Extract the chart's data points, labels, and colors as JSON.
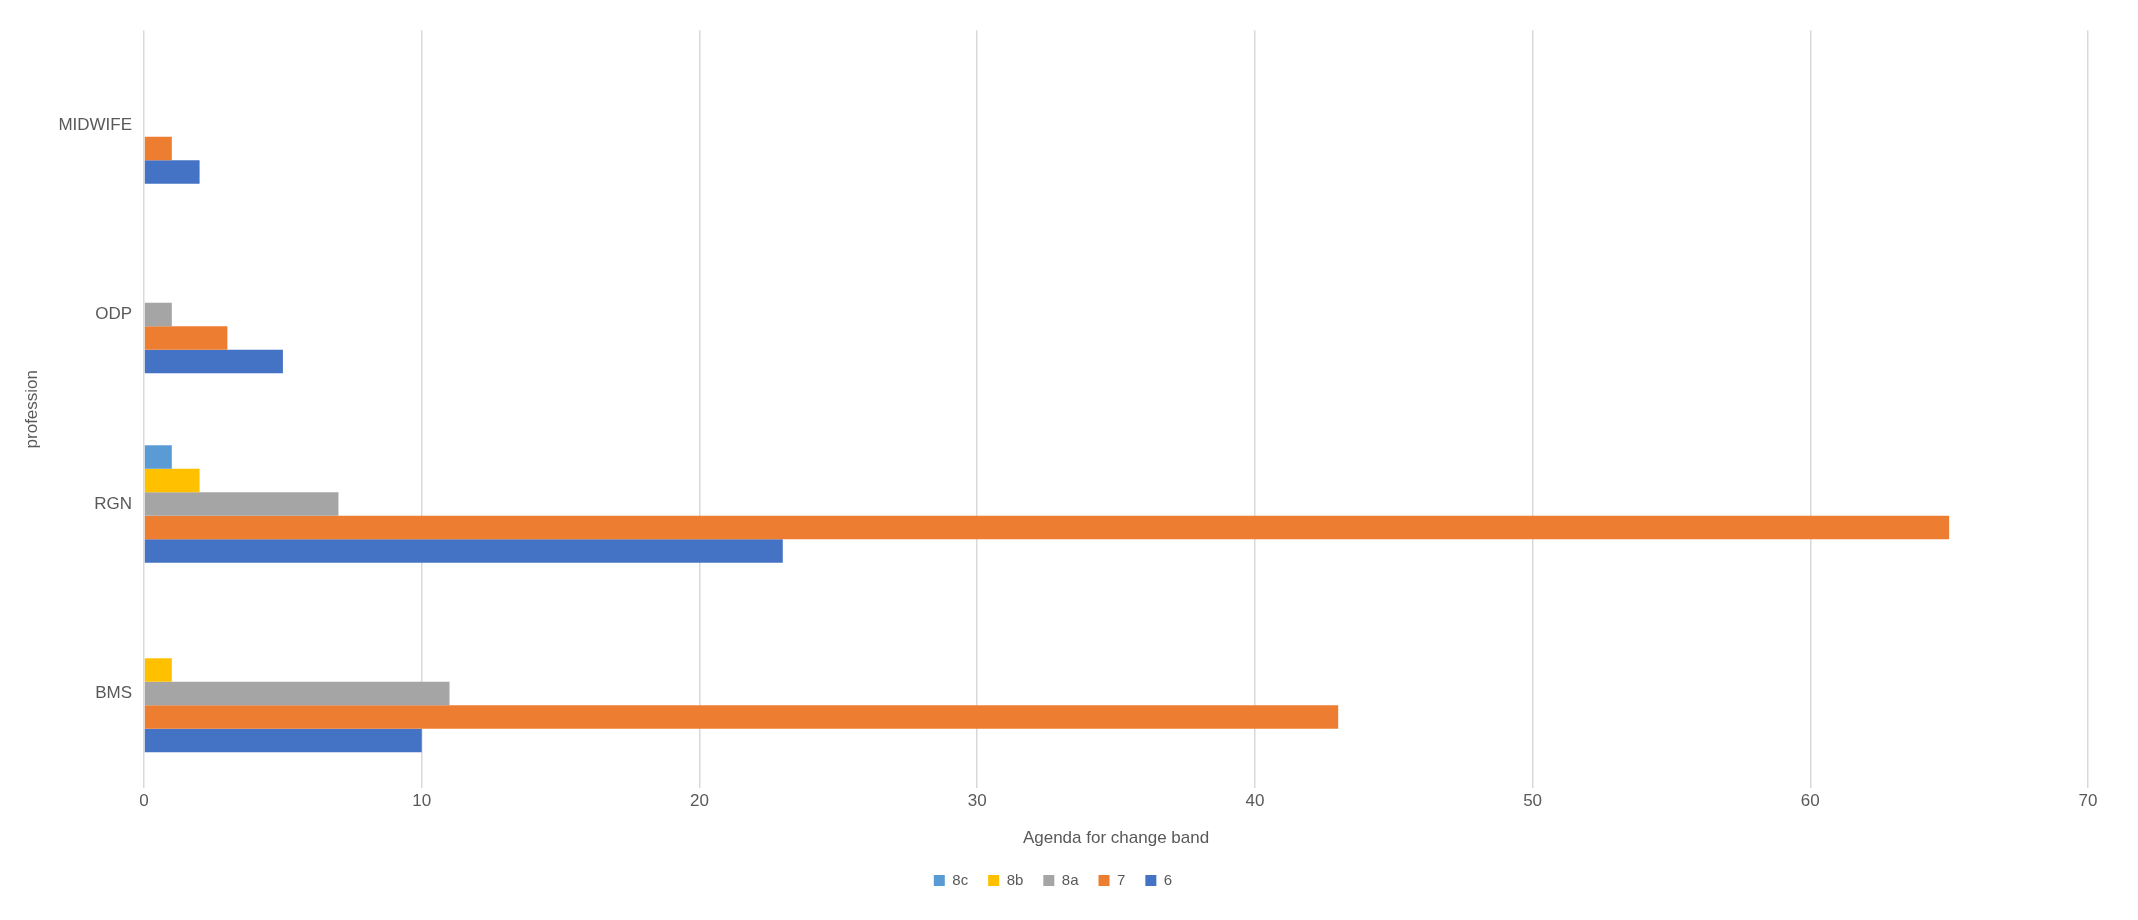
{
  "chart_data": {
    "type": "bar",
    "orientation": "horizontal",
    "xlabel": "Agenda for change band",
    "ylabel": "profession",
    "categories": [
      "MIDWIFE",
      "ODP",
      "RGN",
      "BMS"
    ],
    "series": [
      {
        "name": "8c",
        "color": "#5b9bd5",
        "values": [
          null,
          null,
          1,
          null
        ]
      },
      {
        "name": "8b",
        "color": "#ffc000",
        "values": [
          null,
          null,
          2,
          1
        ]
      },
      {
        "name": "8a",
        "color": "#a5a5a5",
        "values": [
          null,
          1,
          7,
          11
        ]
      },
      {
        "name": "7",
        "color": "#ed7d31",
        "values": [
          1,
          3,
          65,
          43
        ]
      },
      {
        "name": "6",
        "color": "#4472c4",
        "values": [
          2,
          5,
          23,
          10
        ]
      }
    ],
    "xlim": [
      0,
      70
    ],
    "xticks": [
      0,
      10,
      20,
      30,
      40,
      50,
      60,
      70
    ],
    "grid": "x",
    "legend": "bottom"
  }
}
